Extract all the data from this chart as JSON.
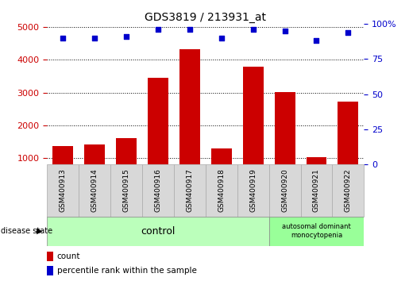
{
  "title": "GDS3819 / 213931_at",
  "samples": [
    "GSM400913",
    "GSM400914",
    "GSM400915",
    "GSM400916",
    "GSM400917",
    "GSM400918",
    "GSM400919",
    "GSM400920",
    "GSM400921",
    "GSM400922"
  ],
  "counts": [
    1350,
    1420,
    1600,
    3450,
    4330,
    1280,
    3780,
    3020,
    1020,
    2720
  ],
  "percentiles": [
    90,
    90,
    91,
    96,
    96,
    90,
    96,
    95,
    88,
    94
  ],
  "bar_color": "#cc0000",
  "dot_color": "#0000cc",
  "ylim_left": [
    800,
    5100
  ],
  "yticks_left": [
    1000,
    2000,
    3000,
    4000,
    5000
  ],
  "yticks_right": [
    0,
    25,
    50,
    75,
    100
  ],
  "percentile_ylim": [
    0,
    100
  ],
  "control_count": 7,
  "disease_label": "autosomal dominant\nmonocytopenia",
  "control_label": "control",
  "disease_state_label": "disease state",
  "legend_count_label": "count",
  "legend_percentile_label": "percentile rank within the sample",
  "bg_color": "#ffffff",
  "grid_color": "#000000",
  "control_bg": "#bbffbb",
  "disease_bg": "#99ff99",
  "xticklabel_bg": "#d8d8d8"
}
